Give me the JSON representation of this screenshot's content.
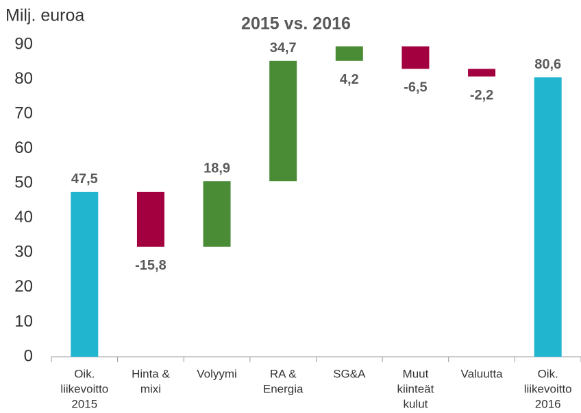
{
  "chart_data": {
    "type": "waterfall",
    "title": "2015 vs. 2016",
    "y_label": "Milj. euroa",
    "categories": [
      [
        "Oik.",
        "liikevoitto",
        "2015"
      ],
      [
        "Hinta &",
        "mixi"
      ],
      [
        "Volyymi"
      ],
      [
        "RA &",
        "Energia"
      ],
      [
        "SG&A"
      ],
      [
        "Muut",
        "kiinteät",
        "kulut"
      ],
      [
        "Valuutta"
      ],
      [
        "Oik.",
        "liikevoitto",
        "2016"
      ]
    ],
    "values": [
      47.5,
      -15.8,
      18.9,
      34.7,
      4.2,
      -6.5,
      -2.2,
      80.6
    ],
    "value_labels": [
      "47,5",
      "-15,8",
      "18,9",
      "34,7",
      "4,2",
      "-6,5",
      "-2,2",
      "80,6"
    ],
    "measures": [
      "total",
      "relative",
      "relative",
      "relative",
      "relative",
      "relative",
      "relative",
      "total"
    ],
    "colors": {
      "total": "#22b5d0",
      "increase": "#4a8c35",
      "decrease": "#a3003f"
    },
    "ylim": [
      0,
      90
    ],
    "yticks": [
      0,
      10,
      20,
      30,
      40,
      50,
      60,
      70,
      80,
      90
    ],
    "grid": false
  }
}
